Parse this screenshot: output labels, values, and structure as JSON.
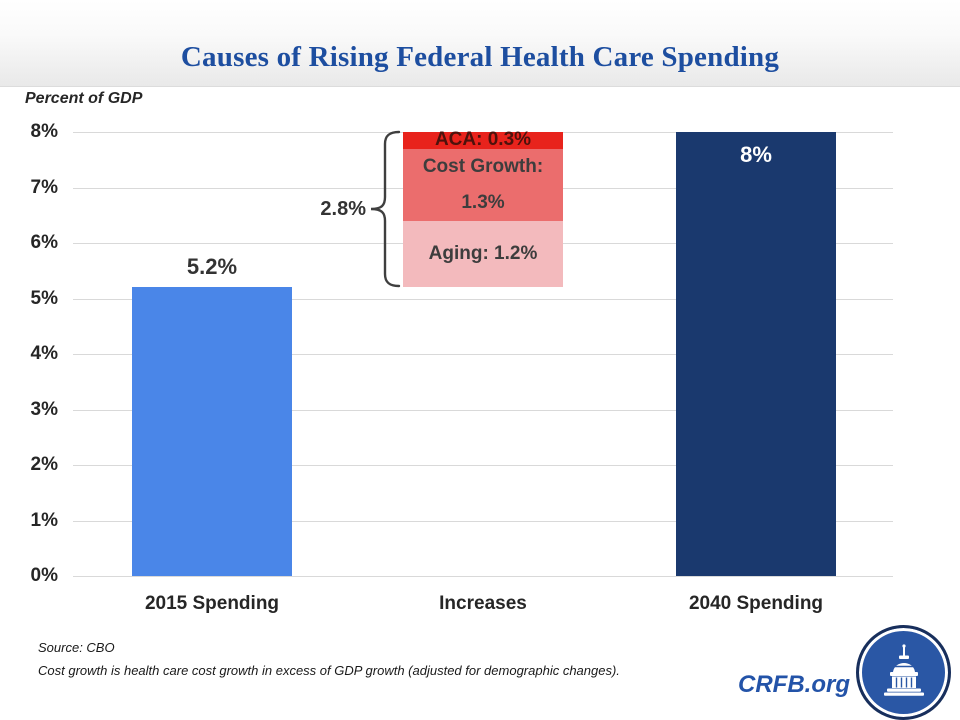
{
  "header": {
    "title": "Causes of Rising Federal Health Care Spending"
  },
  "chart": {
    "axis_title": "Percent of GDP",
    "increase_total_label": "2.8%"
  },
  "chart_data": {
    "type": "bar",
    "subtype": "waterfall-stacked",
    "title": "Causes of Rising Federal Health Care Spending",
    "ylabel": "Percent of GDP",
    "ylim": [
      0,
      8
    ],
    "grid": true,
    "legend": "none",
    "y_ticks": [
      {
        "value": 0,
        "label": "0%"
      },
      {
        "value": 1,
        "label": "1%"
      },
      {
        "value": 2,
        "label": "2%"
      },
      {
        "value": 3,
        "label": "3%"
      },
      {
        "value": 4,
        "label": "4%"
      },
      {
        "value": 5,
        "label": "5%"
      },
      {
        "value": 6,
        "label": "6%"
      },
      {
        "value": 7,
        "label": "7%"
      },
      {
        "value": 8,
        "label": "8%"
      }
    ],
    "categories": [
      "2015 Spending",
      "Increases",
      "2040 Spending"
    ],
    "bars": [
      {
        "category": "2015 Spending",
        "kind": "total",
        "base": 0,
        "value": 5.2,
        "label": "5.2%",
        "label_position": "above",
        "color": "#4a86e8"
      },
      {
        "category": "Increases",
        "kind": "stacked",
        "base": 5.2,
        "total": 2.8,
        "total_label": "2.8%",
        "segments": [
          {
            "name": "Aging",
            "value": 1.2,
            "label_lines": [
              "Aging: 1.2%"
            ],
            "color": "#f3babd",
            "text_color": "#3d3d3d"
          },
          {
            "name": "Cost Growth",
            "value": 1.3,
            "label_lines": [
              "Cost Growth:",
              "1.3%"
            ],
            "color": "#eb6d6d",
            "text_color": "#3d3d3d"
          },
          {
            "name": "ACA",
            "value": 0.3,
            "label_lines": [
              "ACA: 0.3%"
            ],
            "color": "#e8231c",
            "text_color": "#4d120c"
          }
        ]
      },
      {
        "category": "2040 Spending",
        "kind": "total",
        "base": 0,
        "value": 8,
        "label": "8%",
        "label_position": "inside-top",
        "color": "#1a396e"
      }
    ]
  },
  "footer": {
    "source_line1": "Source: CBO",
    "source_line2": "Cost growth is health care cost growth in excess of GDP growth (adjusted for demographic changes).",
    "brand": "CRFB.org",
    "logo": "capitol-dome-icon"
  },
  "colors": {
    "title_blue": "#1d4ea0",
    "brand_blue": "#2353a8",
    "bar_2015": "#4a86e8",
    "bar_2040": "#1a396e",
    "segment_aca": "#e8231c",
    "segment_cost_growth": "#eb6d6d",
    "segment_aging": "#f3babd",
    "gridline": "#d9d9d9",
    "logo_ring": "#182f5c",
    "logo_fill": "#2a57a5"
  }
}
